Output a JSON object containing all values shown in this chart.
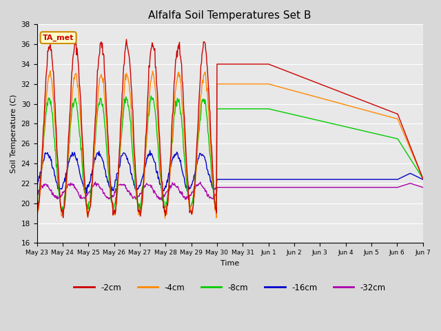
{
  "title": "Alfalfa Soil Temperatures Set B",
  "xlabel": "Time",
  "ylabel": "Soil Temperature (C)",
  "ylim": [
    16,
    38
  ],
  "yticks": [
    16,
    18,
    20,
    22,
    24,
    26,
    28,
    30,
    32,
    34,
    36,
    38
  ],
  "figure_bg": "#d8d8d8",
  "plot_bg": "#e8e8e8",
  "annotation_text": "TA_met",
  "annotation_bg": "#ffffcc",
  "annotation_border": "#cc8800",
  "annotation_text_color": "#cc0000",
  "colors": {
    "-2cm": "#cc0000",
    "-4cm": "#ff8800",
    "-8cm": "#00cc00",
    "-16cm": "#0000cc",
    "-32cm": "#aa00aa"
  },
  "linewidth": 1.0,
  "legend_colors": [
    "#cc0000",
    "#ff8800",
    "#00cc00",
    "#0000cc",
    "#aa00aa"
  ],
  "legend_labels": [
    "-2cm",
    "-4cm",
    "-8cm",
    "-16cm",
    "-32cm"
  ],
  "xtick_labels": [
    "May 23",
    "May 24",
    "May 25",
    "May 26",
    "May 27",
    "May 28",
    "May 29",
    "May 30",
    "May 31",
    "Jun 1",
    "Jun 2",
    "Jun 3",
    "Jun 4",
    "Jun 5",
    "Jun 6",
    "Jun 7"
  ]
}
